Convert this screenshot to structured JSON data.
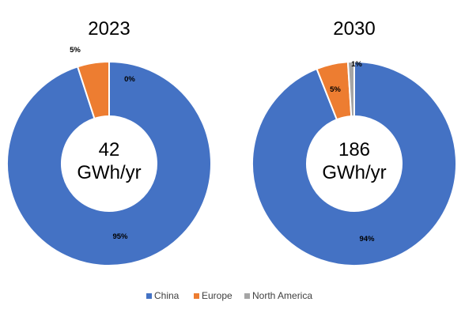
{
  "chart_data": [
    {
      "type": "pie",
      "title": "2023",
      "center_label": [
        "42",
        "GWh/yr"
      ],
      "categories": [
        "China",
        "Europe",
        "North America"
      ],
      "values": [
        95,
        5,
        0
      ],
      "value_labels": [
        "95%",
        "5%",
        "0%"
      ]
    },
    {
      "type": "pie",
      "title": "2030",
      "center_label": [
        "186",
        "GWh/yr"
      ],
      "categories": [
        "China",
        "Europe",
        "North America"
      ],
      "values": [
        94,
        5,
        1
      ],
      "value_labels": [
        "94%",
        "5%",
        "1%"
      ]
    }
  ],
  "legend": {
    "position": "bottom",
    "items": [
      {
        "label": "China",
        "color": "#4472C4"
      },
      {
        "label": "Europe",
        "color": "#ED7D31"
      },
      {
        "label": "North America",
        "color": "#A5A5A5"
      }
    ]
  }
}
